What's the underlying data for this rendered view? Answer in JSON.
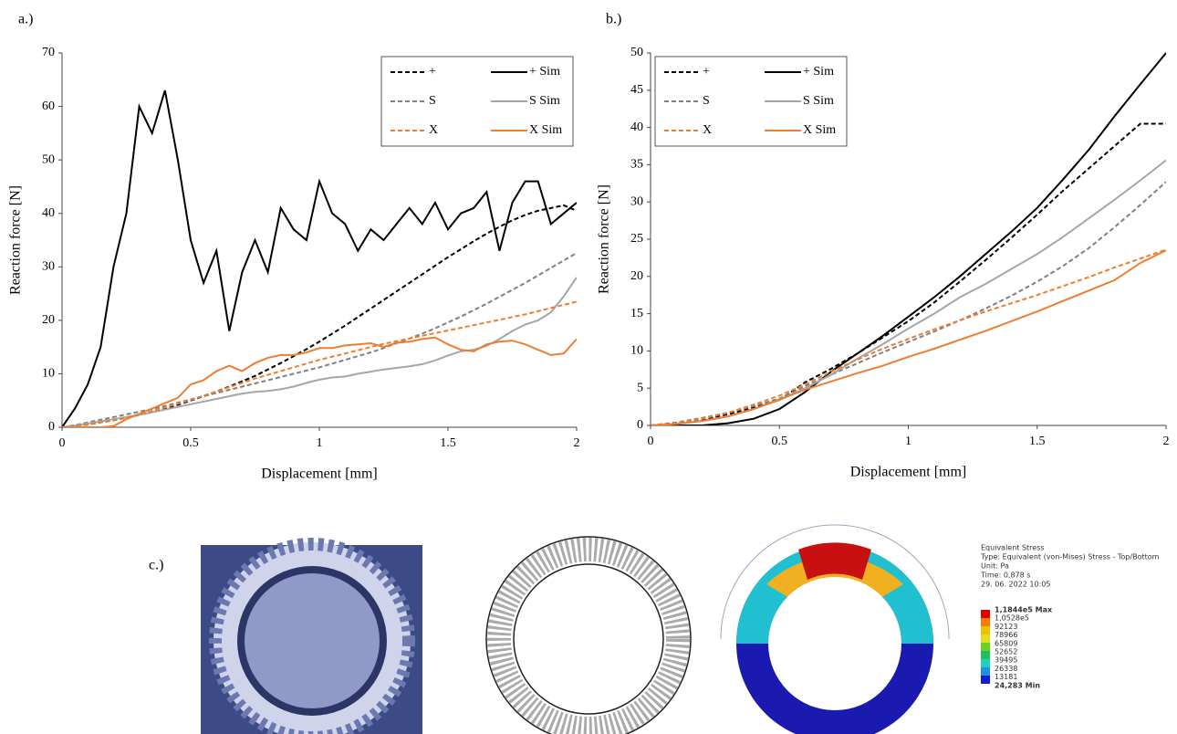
{
  "chart_data": [
    {
      "type": "line",
      "panel_label": "a.)",
      "x_label": "Displacement [mm]",
      "y_label": "Reaction force [N]",
      "x": [
        0,
        0.05,
        0.1,
        0.15,
        0.2,
        0.25,
        0.3,
        0.35,
        0.4,
        0.45,
        0.5,
        0.55,
        0.6,
        0.65,
        0.7,
        0.75,
        0.8,
        0.85,
        0.9,
        0.95,
        1,
        1.05,
        1.1,
        1.15,
        1.2,
        1.25,
        1.3,
        1.35,
        1.4,
        1.45,
        1.5,
        1.55,
        1.6,
        1.65,
        1.7,
        1.75,
        1.8,
        1.85,
        1.9,
        1.95,
        2
      ],
      "xlim": [
        0,
        2
      ],
      "xticks": [
        0,
        0.5,
        1,
        1.5,
        2
      ],
      "ylim": [
        0,
        70
      ],
      "yticks": [
        0,
        10,
        20,
        30,
        40,
        50,
        60,
        70
      ],
      "legend": "upper right",
      "series": [
        {
          "name": "+",
          "color": "#000000",
          "dashed": true,
          "values": [
            0,
            0.2,
            0.5,
            0.9,
            1.3,
            1.8,
            2.3,
            2.9,
            3.5,
            4.2,
            5.0,
            5.8,
            6.7,
            7.6,
            8.6,
            9.6,
            10.8,
            12.0,
            13.3,
            14.6,
            16.0,
            17.5,
            19.0,
            20.6,
            22.2,
            23.8,
            25.4,
            27.0,
            28.6,
            30.2,
            31.8,
            33.3,
            34.8,
            36.2,
            37.5,
            38.7,
            39.7,
            40.5,
            41.0,
            41.5,
            40.5
          ]
        },
        {
          "name": "+ Sim",
          "color": "#000000",
          "dashed": false,
          "values": [
            0,
            3.5,
            8,
            15,
            30,
            40,
            60,
            55,
            63,
            50,
            35,
            27,
            33,
            18,
            29,
            35,
            29,
            41,
            37,
            35,
            46,
            40,
            38,
            33,
            37,
            35,
            38,
            41,
            38,
            42,
            37,
            40,
            41,
            44,
            33,
            42,
            46,
            46,
            38,
            40,
            42
          ]
        },
        {
          "name": "S",
          "color": "#808080",
          "dashed": true,
          "values": [
            0,
            0.4,
            0.9,
            1.4,
            1.9,
            2.4,
            2.9,
            3.4,
            4.0,
            4.6,
            5.2,
            5.8,
            6.4,
            7.0,
            7.6,
            8.2,
            8.8,
            9.4,
            10.0,
            10.6,
            11.2,
            11.9,
            12.6,
            13.3,
            14.0,
            14.8,
            15.7,
            16.6,
            17.5,
            18.5,
            19.6,
            20.7,
            21.9,
            23.1,
            24.4,
            25.7,
            27.0,
            28.4,
            29.8,
            31.2,
            32.6
          ]
        },
        {
          "name": "S Sim",
          "color": "#a6a6a6",
          "dashed": false,
          "values": [
            0,
            0.3,
            0.7,
            1.1,
            1.5,
            1.9,
            2.3,
            2.8,
            3.3,
            3.8,
            4.3,
            4.8,
            5.3,
            5.8,
            6.3,
            6.6,
            6.8,
            7.1,
            7.6,
            8.3,
            8.9,
            9.3,
            9.5,
            10.0,
            10.4,
            10.8,
            11.1,
            11.4,
            11.8,
            12.5,
            13.4,
            14.2,
            14.5,
            15.2,
            16.5,
            18.0,
            19.2,
            20.0,
            21.5,
            24.5,
            28.0
          ]
        },
        {
          "name": "X",
          "color": "#ed7d31",
          "dashed": true,
          "values": [
            0,
            0.2,
            0.5,
            0.9,
            1.3,
            1.8,
            2.4,
            3.0,
            3.7,
            4.4,
            5.1,
            5.9,
            6.7,
            7.5,
            8.3,
            9.1,
            9.8,
            10.5,
            11.2,
            11.9,
            12.6,
            13.2,
            13.8,
            14.4,
            15.0,
            15.6,
            16.1,
            16.6,
            17.1,
            17.6,
            18.1,
            18.6,
            19.1,
            19.6,
            20.1,
            20.6,
            21.1,
            21.7,
            22.3,
            22.9,
            23.5
          ]
        },
        {
          "name": "X Sim",
          "color": "#ed7d31",
          "dashed": false,
          "values": [
            0,
            0,
            0,
            0,
            0.2,
            1.5,
            2.5,
            3.5,
            4.5,
            5.5,
            8.0,
            8.8,
            10.5,
            11.5,
            10.5,
            12.0,
            13.0,
            13.5,
            13.5,
            14.0,
            14.8,
            14.8,
            15.3,
            15.5,
            15.7,
            15.0,
            15.8,
            16.0,
            16.5,
            16.8,
            15.5,
            14.5,
            14.2,
            15.5,
            16.0,
            16.2,
            15.5,
            14.5,
            13.5,
            13.8,
            16.5
          ]
        }
      ]
    },
    {
      "type": "line",
      "panel_label": "b.)",
      "x_label": "Displacement [mm]",
      "y_label": "Reaction force [N]",
      "x": [
        0,
        0.1,
        0.2,
        0.3,
        0.4,
        0.5,
        0.6,
        0.7,
        0.8,
        0.9,
        1,
        1.1,
        1.2,
        1.3,
        1.4,
        1.5,
        1.6,
        1.7,
        1.8,
        1.9,
        2
      ],
      "xlim": [
        0,
        2
      ],
      "xticks": [
        0,
        0.5,
        1,
        1.5,
        2
      ],
      "ylim": [
        0,
        50
      ],
      "yticks": [
        0,
        5,
        10,
        15,
        20,
        25,
        30,
        35,
        40,
        45,
        50
      ],
      "legend": "upper left",
      "series": [
        {
          "name": "+",
          "color": "#000000",
          "dashed": true,
          "values": [
            0,
            0.3,
            0.8,
            1.5,
            2.4,
            3.4,
            5.8,
            7.6,
            9.6,
            11.8,
            14.0,
            16.5,
            19.3,
            22.2,
            25.2,
            28.3,
            31.5,
            34.5,
            37.5,
            40.5,
            40.5
          ]
        },
        {
          "name": "+ Sim",
          "color": "#000000",
          "dashed": false,
          "values": [
            0,
            0,
            0,
            0.3,
            0.9,
            2.2,
            4.5,
            7.2,
            9.6,
            12.0,
            14.6,
            17.2,
            20.0,
            23.0,
            26.0,
            29.2,
            33.0,
            37.0,
            41.5,
            45.8,
            50.0
          ]
        },
        {
          "name": "S",
          "color": "#808080",
          "dashed": true,
          "values": [
            0,
            0.4,
            1.0,
            1.7,
            2.6,
            3.6,
            5.3,
            6.8,
            8.3,
            9.8,
            11.2,
            12.6,
            14.1,
            15.7,
            17.4,
            19.3,
            21.4,
            23.8,
            26.6,
            29.6,
            32.7
          ]
        },
        {
          "name": "S Sim",
          "color": "#a6a6a6",
          "dashed": false,
          "values": [
            0,
            0.2,
            0.6,
            1.2,
            2.2,
            3.4,
            5.0,
            6.8,
            8.9,
            10.9,
            13.0,
            15.0,
            17.2,
            19.0,
            21.0,
            23.0,
            25.3,
            27.8,
            30.3,
            32.9,
            35.6
          ]
        },
        {
          "name": "X",
          "color": "#ed7d31",
          "dashed": true,
          "values": [
            0,
            0.3,
            0.9,
            1.7,
            2.8,
            4.0,
            5.5,
            7.2,
            8.8,
            10.3,
            11.6,
            12.9,
            14.1,
            15.3,
            16.4,
            17.5,
            18.7,
            19.9,
            21.2,
            22.4,
            23.6
          ]
        },
        {
          "name": "X Sim",
          "color": "#ed7d31",
          "dashed": false,
          "values": [
            0,
            0.2,
            0.6,
            1.2,
            2.2,
            3.5,
            4.8,
            5.9,
            7.0,
            8.0,
            9.2,
            10.3,
            11.5,
            12.7,
            14.0,
            15.3,
            16.7,
            18.1,
            19.5,
            21.8,
            23.5
          ]
        }
      ]
    }
  ],
  "panel_c": {
    "label": "c.)",
    "info": [
      "Equivalent Stress",
      "Type: Equivalent (von-Mises) Stress - Top/Bottom",
      "Unit: Pa",
      "Time: 0,878 s",
      "29. 06. 2022 10:05"
    ],
    "levels": [
      "1,1844e5 Max",
      "1,0528e5",
      "92123",
      "78966",
      "65809",
      "52652",
      "39495",
      "26338",
      "13181",
      "24,283 Min"
    ]
  }
}
